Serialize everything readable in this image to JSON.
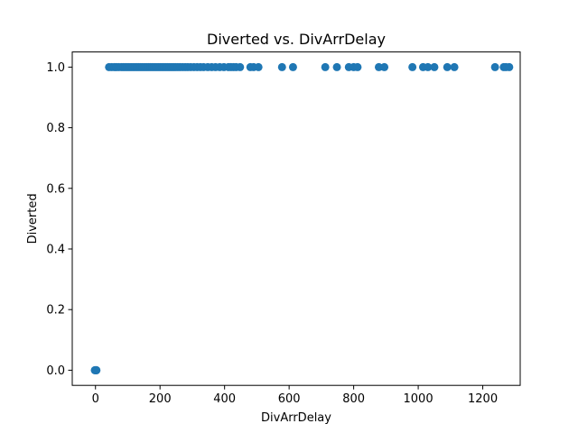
{
  "chart_data": {
    "type": "scatter",
    "title": "Diverted vs. DivArrDelay",
    "xlabel": "DivArrDelay",
    "ylabel": "Diverted",
    "xlim": [
      -72,
      1316
    ],
    "ylim": [
      -0.05,
      1.05
    ],
    "grid": false,
    "x_ticks": [
      0,
      200,
      400,
      600,
      800,
      1000,
      1200
    ],
    "x_tick_labels": [
      "0",
      "200",
      "400",
      "600",
      "800",
      "1000",
      "1200"
    ],
    "y_ticks": [
      0.0,
      0.2,
      0.4,
      0.6,
      0.8,
      1.0
    ],
    "y_tick_labels": [
      "0.0",
      "0.2",
      "0.4",
      "0.6",
      "0.8",
      "1.0"
    ],
    "series": [
      {
        "color": "#1f77b4",
        "points": [
          [
            0,
            0
          ],
          [
            1,
            0
          ],
          [
            2,
            0
          ],
          [
            3,
            0
          ],
          [
            -2,
            0
          ],
          [
            42,
            1
          ],
          [
            50,
            1
          ],
          [
            58,
            1
          ],
          [
            65,
            1
          ],
          [
            72,
            1
          ],
          [
            80,
            1
          ],
          [
            86,
            1
          ],
          [
            92,
            1
          ],
          [
            98,
            1
          ],
          [
            104,
            1
          ],
          [
            110,
            1
          ],
          [
            116,
            1
          ],
          [
            122,
            1
          ],
          [
            128,
            1
          ],
          [
            134,
            1
          ],
          [
            140,
            1
          ],
          [
            146,
            1
          ],
          [
            152,
            1
          ],
          [
            158,
            1
          ],
          [
            164,
            1
          ],
          [
            170,
            1
          ],
          [
            176,
            1
          ],
          [
            182,
            1
          ],
          [
            188,
            1
          ],
          [
            194,
            1
          ],
          [
            200,
            1
          ],
          [
            206,
            1
          ],
          [
            212,
            1
          ],
          [
            218,
            1
          ],
          [
            224,
            1
          ],
          [
            230,
            1
          ],
          [
            236,
            1
          ],
          [
            242,
            1
          ],
          [
            248,
            1
          ],
          [
            255,
            1
          ],
          [
            262,
            1
          ],
          [
            270,
            1
          ],
          [
            278,
            1
          ],
          [
            286,
            1
          ],
          [
            295,
            1
          ],
          [
            305,
            1
          ],
          [
            315,
            1
          ],
          [
            325,
            1
          ],
          [
            335,
            1
          ],
          [
            348,
            1
          ],
          [
            360,
            1
          ],
          [
            372,
            1
          ],
          [
            385,
            1
          ],
          [
            398,
            1
          ],
          [
            412,
            1
          ],
          [
            420,
            1
          ],
          [
            428,
            1
          ],
          [
            436,
            1
          ],
          [
            448,
            1
          ],
          [
            480,
            1
          ],
          [
            490,
            1
          ],
          [
            505,
            1
          ],
          [
            578,
            1
          ],
          [
            612,
            1
          ],
          [
            712,
            1
          ],
          [
            748,
            1
          ],
          [
            785,
            1
          ],
          [
            800,
            1
          ],
          [
            812,
            1
          ],
          [
            878,
            1
          ],
          [
            895,
            1
          ],
          [
            982,
            1
          ],
          [
            1015,
            1
          ],
          [
            1030,
            1
          ],
          [
            1050,
            1
          ],
          [
            1090,
            1
          ],
          [
            1112,
            1
          ],
          [
            1238,
            1
          ],
          [
            1265,
            1
          ],
          [
            1272,
            1
          ],
          [
            1282,
            1
          ]
        ]
      }
    ]
  }
}
